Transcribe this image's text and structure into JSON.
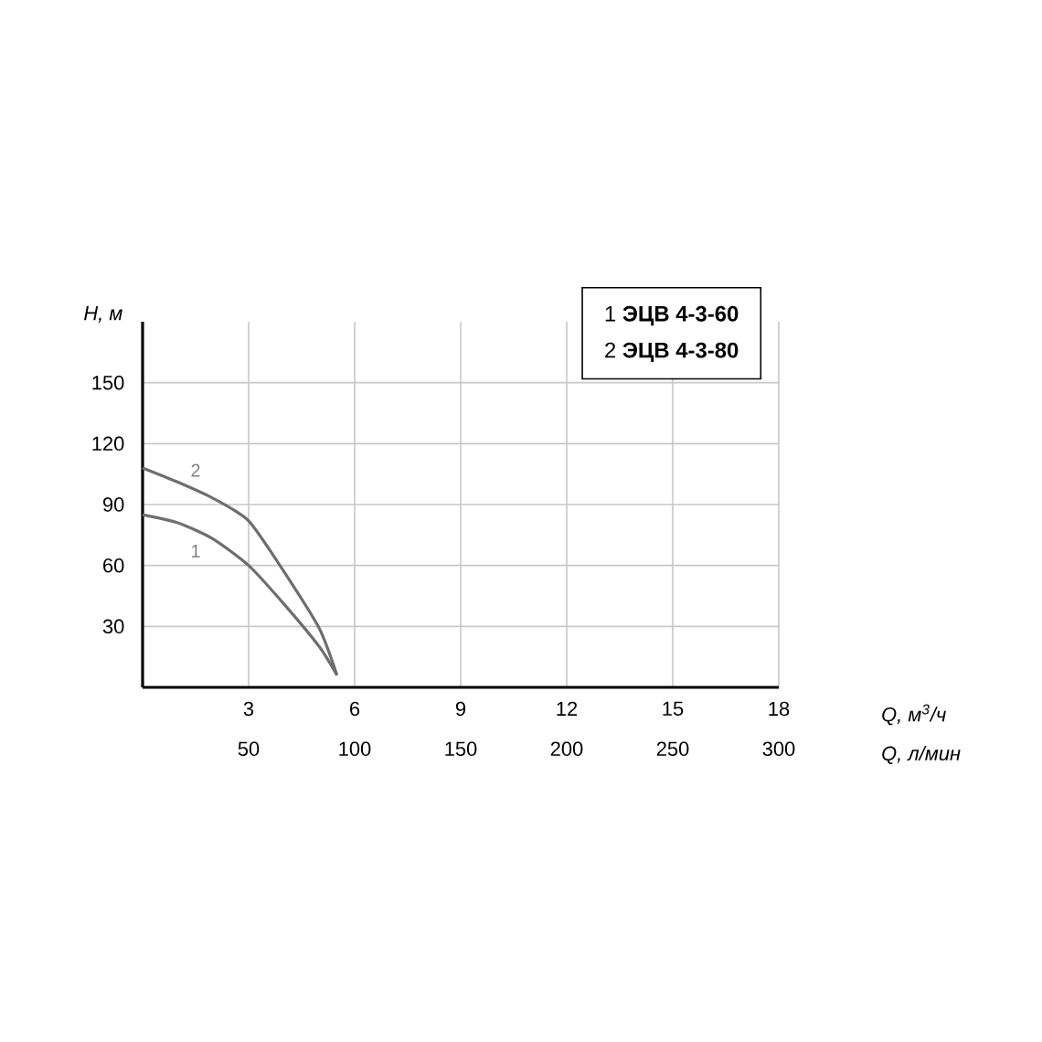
{
  "chart_data": {
    "type": "line",
    "xlabel": "Q, м$^{3}$/ч",
    "ylabel": "H, м",
    "x2label": "Q, л/мин",
    "xlim": [
      0,
      18
    ],
    "xticks": [
      3,
      6,
      9,
      12,
      15,
      18
    ],
    "ylim": [
      0,
      180
    ],
    "yticks": [
      30,
      60,
      90,
      120,
      150
    ],
    "x2lim": [
      0,
      300
    ],
    "x2ticks": [
      50,
      100,
      150,
      200,
      250,
      300
    ],
    "grid": true,
    "legend": "top right",
    "series": [
      {
        "name": "1 **ЭЦВ 4-3-60**",
        "color": "#6e6e6e",
        "x": [
          0,
          1,
          2,
          3,
          4,
          5,
          5.5
        ],
        "values": [
          85,
          81,
          73,
          60,
          41,
          20,
          6
        ]
      },
      {
        "name": "2 **ЭЦВ 4-3-80**",
        "color": "#6e6e6e",
        "x": [
          0,
          1,
          2,
          3,
          4,
          5,
          5.5
        ],
        "values": [
          108,
          101,
          93,
          82,
          57,
          29,
          6
        ]
      }
    ],
    "annotations": [
      "1",
      "2"
    ]
  }
}
